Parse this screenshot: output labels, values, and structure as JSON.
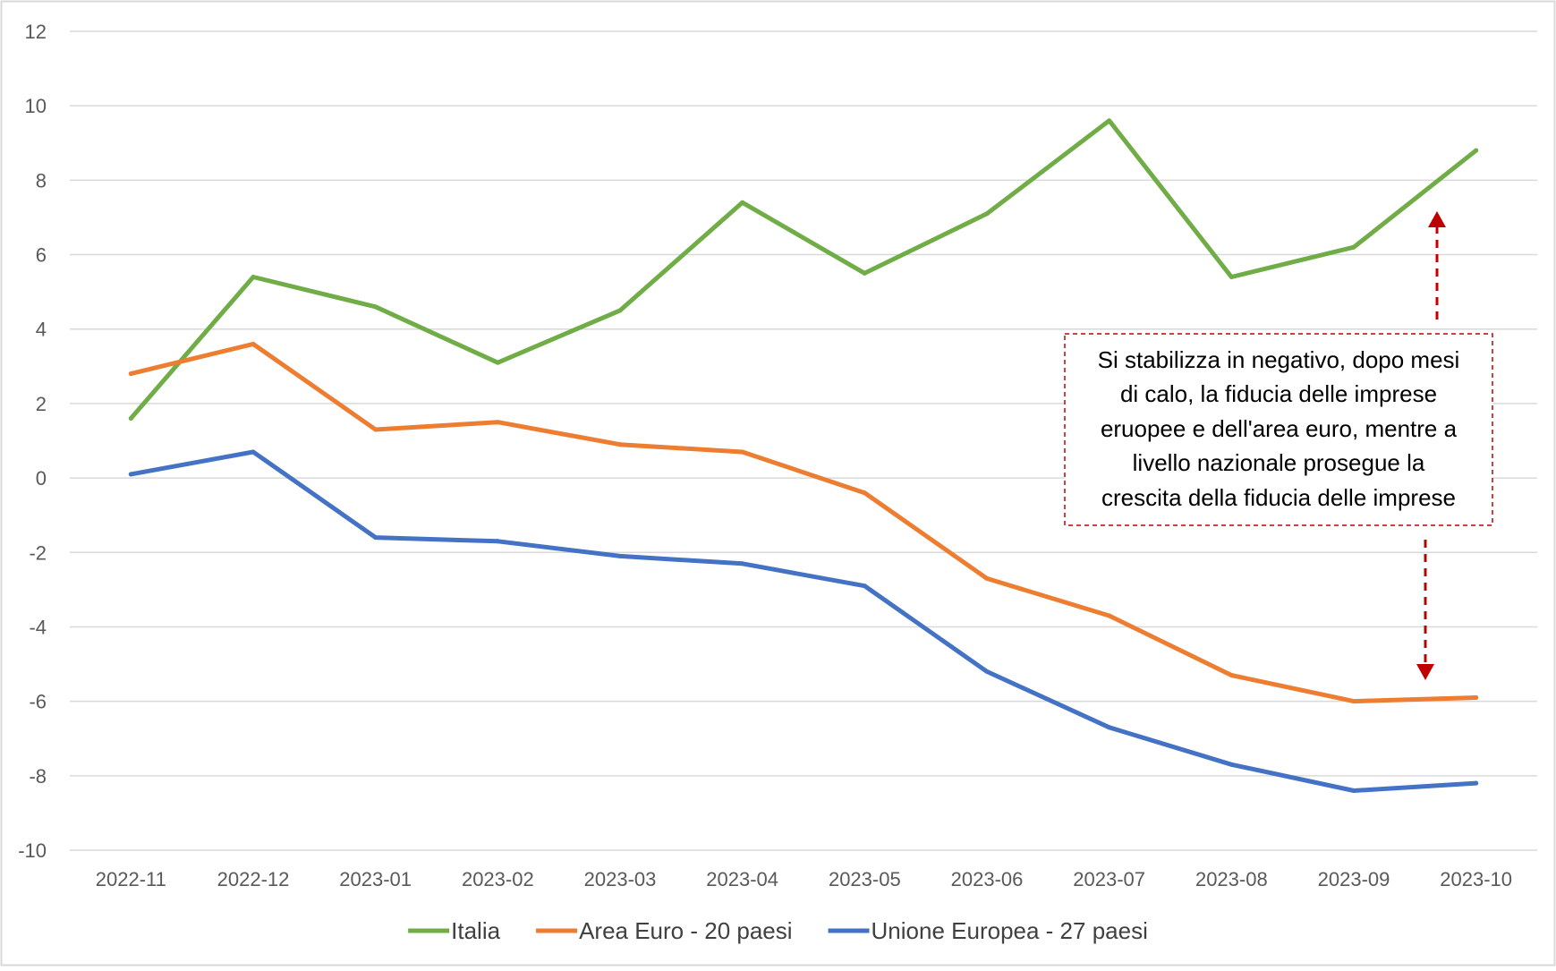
{
  "chart_data": {
    "type": "line",
    "categories": [
      "2022-11",
      "2022-12",
      "2023-01",
      "2023-02",
      "2023-03",
      "2023-04",
      "2023-05",
      "2023-06",
      "2023-07",
      "2023-08",
      "2023-09",
      "2023-10"
    ],
    "series": [
      {
        "name": "Italia",
        "color": "#70AD47",
        "values": [
          1.6,
          5.4,
          4.6,
          3.1,
          4.5,
          7.4,
          5.5,
          7.1,
          9.6,
          5.4,
          6.2,
          8.8
        ]
      },
      {
        "name": "Area Euro - 20 paesi",
        "color": "#ED7D31",
        "values": [
          2.8,
          3.6,
          1.3,
          1.5,
          0.9,
          0.7,
          -0.4,
          -2.7,
          -3.7,
          -5.3,
          -6.0,
          -5.9
        ]
      },
      {
        "name": "Unione Europea - 27 paesi",
        "color": "#4472C4",
        "values": [
          0.1,
          0.7,
          -1.6,
          -1.7,
          -2.1,
          -2.3,
          -2.9,
          -5.2,
          -6.7,
          -7.7,
          -8.4,
          -8.2
        ]
      }
    ],
    "ylim": [
      -10,
      12
    ],
    "yticks": [
      "12",
      "10",
      "8",
      "6",
      "4",
      "2",
      "0",
      "-2",
      "-4",
      "-6",
      "-8",
      "-10"
    ],
    "grid": true,
    "legend_position": "bottom",
    "annotation": {
      "lines": [
        "Si stabilizza in negativo, dopo mesi",
        "di calo, la fiducia delle imprese",
        "eruopee e dell'area euro, mentre a",
        "livello nazionale prosegue la",
        "crescita della fiducia delle imprese"
      ],
      "border_color": "#C00000",
      "arrow_color": "#C00000"
    }
  }
}
